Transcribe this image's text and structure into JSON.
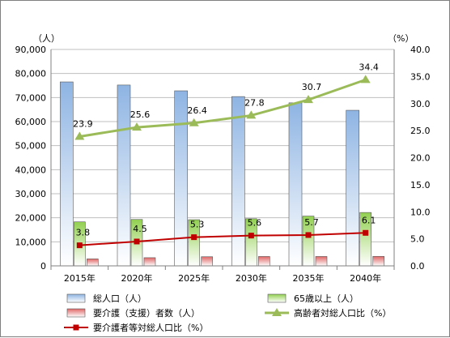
{
  "chart_data": {
    "type": "bar",
    "categories": [
      "2015年",
      "2020年",
      "2025年",
      "2030年",
      "2035年",
      "2040年"
    ],
    "left_axis": {
      "unit_label": "（人）",
      "ylim": [
        0,
        90000
      ],
      "ticks": [
        "0",
        "10,000",
        "20,000",
        "30,000",
        "40,000",
        "50,000",
        "60,000",
        "70,000",
        "80,000",
        "90,000"
      ]
    },
    "right_axis": {
      "unit_label": "（%）",
      "ylim": [
        0,
        40
      ],
      "ticks": [
        "0.0",
        "5.0",
        "10.0",
        "15.0",
        "20.0",
        "25.0",
        "30.0",
        "35.0",
        "40.0"
      ]
    },
    "series": [
      {
        "name": "総人口（人）",
        "kind": "bar",
        "axis": "left",
        "color": "#8eb4e3",
        "values": [
          76500,
          75200,
          72800,
          70400,
          67800,
          64700
        ]
      },
      {
        "name": "65歳以上（人）",
        "kind": "bar",
        "axis": "left",
        "color": "#92d050",
        "values": [
          18300,
          19300,
          19200,
          19600,
          20700,
          22200
        ]
      },
      {
        "name": "要介護（支援）者数（人）",
        "kind": "bar",
        "axis": "left",
        "color": "#e06666",
        "values": [
          2900,
          3400,
          3800,
          3900,
          3900,
          3950
        ]
      },
      {
        "name": "高齢者対総人口比（%）",
        "kind": "line",
        "axis": "right",
        "color": "#9bbb59",
        "values": [
          23.9,
          25.6,
          26.4,
          27.8,
          30.7,
          34.4
        ],
        "labels": [
          "23.9",
          "25.6",
          "26.4",
          "27.8",
          "30.7",
          "34.4"
        ]
      },
      {
        "name": "要介護者等対総人口比（%）",
        "kind": "line",
        "axis": "right",
        "color": "#c00000",
        "values": [
          3.8,
          4.5,
          5.3,
          5.6,
          5.7,
          6.1
        ],
        "labels": [
          "3.8",
          "4.5",
          "5.3",
          "5.6",
          "5.7",
          "6.1"
        ]
      }
    ],
    "grid": true,
    "legend_position": "bottom"
  }
}
